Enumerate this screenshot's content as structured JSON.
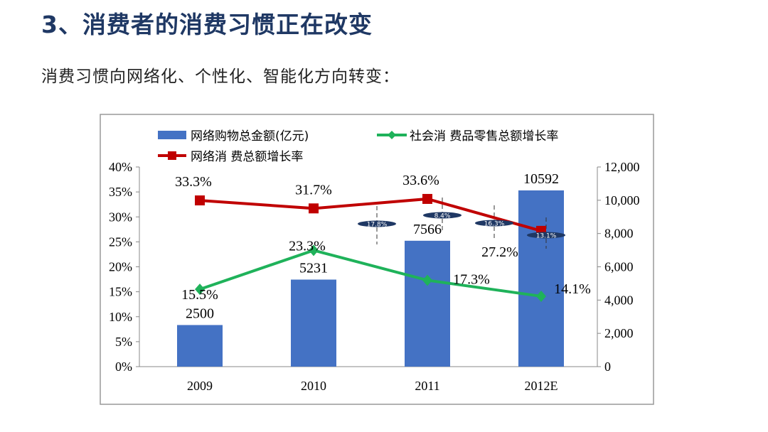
{
  "header": {
    "title": "3、消费者的消费习惯正在改变",
    "subtitle": "消费习惯向网络化、个性化、智能化方向转变："
  },
  "chart_data": {
    "type": "bar+line",
    "categories": [
      "2009",
      "2010",
      "2011",
      "2012E"
    ],
    "series": [
      {
        "name": "网络购物总金额(亿元)",
        "type": "bar",
        "axis": "right",
        "color": "#4472c4",
        "values": [
          2500,
          5231,
          7566,
          10592
        ],
        "labels": [
          "2500",
          "5231",
          "7566",
          "10592"
        ]
      },
      {
        "name": "社会消 费品零售总额增长率",
        "type": "line",
        "axis": "left",
        "color": "#1fb25a",
        "values": [
          15.5,
          23.3,
          17.3,
          14.1
        ],
        "labels": [
          "15.5%",
          "23.3%",
          "17.3%",
          "14.1%"
        ]
      },
      {
        "name": "网络消 费总额增长率",
        "type": "line",
        "axis": "left",
        "color": "#c00000",
        "values": [
          33.3,
          31.7,
          33.6,
          27.2
        ],
        "labels": [
          "33.3%",
          "31.7%",
          "33.6%",
          "27.2%"
        ]
      }
    ],
    "left_axis": {
      "ylim": [
        0,
        40
      ],
      "ticks": [
        "0%",
        "5%",
        "10%",
        "15%",
        "20%",
        "25%",
        "30%",
        "35%",
        "40%"
      ]
    },
    "right_axis": {
      "ylim": [
        0,
        12000
      ],
      "ticks": [
        "0",
        "2,000",
        "4,000",
        "6,000",
        "8,000",
        "10,000",
        "12,000"
      ]
    },
    "annotations": [
      "17.8%",
      "8.4%",
      "16.3%",
      "13.1%"
    ],
    "legend_position": "top"
  }
}
